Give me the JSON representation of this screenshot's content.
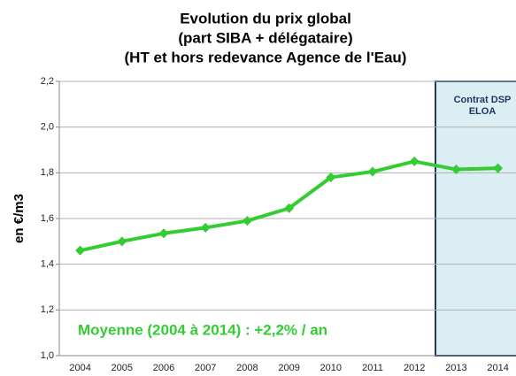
{
  "chart_data": {
    "type": "line",
    "title": [
      "Evolution du prix global",
      "(part SIBA + délégataire)",
      "(HT et hors redevance Agence de l'Eau)"
    ],
    "ylabel": "en €/m3",
    "categories": [
      "2004",
      "2005",
      "2006",
      "2007",
      "2008",
      "2009",
      "2010",
      "2011",
      "2012",
      "2013",
      "2014"
    ],
    "series": [
      {
        "name": "Prix global",
        "color": "#33cc33",
        "values": [
          1.46,
          1.5,
          1.535,
          1.56,
          1.59,
          1.645,
          1.78,
          1.805,
          1.85,
          1.815,
          1.82
        ]
      }
    ],
    "ylim": [
      1.0,
      2.2
    ],
    "yticks": [
      {
        "value": 1.0,
        "label": "1,0"
      },
      {
        "value": 1.2,
        "label": "1,2"
      },
      {
        "value": 1.4,
        "label": "1,4"
      },
      {
        "value": 1.6,
        "label": "1,6"
      },
      {
        "value": 1.8,
        "label": "1,8"
      },
      {
        "value": 2.0,
        "label": "2,0"
      },
      {
        "value": 2.2,
        "label": "2,2"
      }
    ],
    "grid": true,
    "region_label": [
      "Contrat DSP",
      "ELOA"
    ],
    "note": "Moyenne (2004 à 2014) : +2,2% / an"
  }
}
